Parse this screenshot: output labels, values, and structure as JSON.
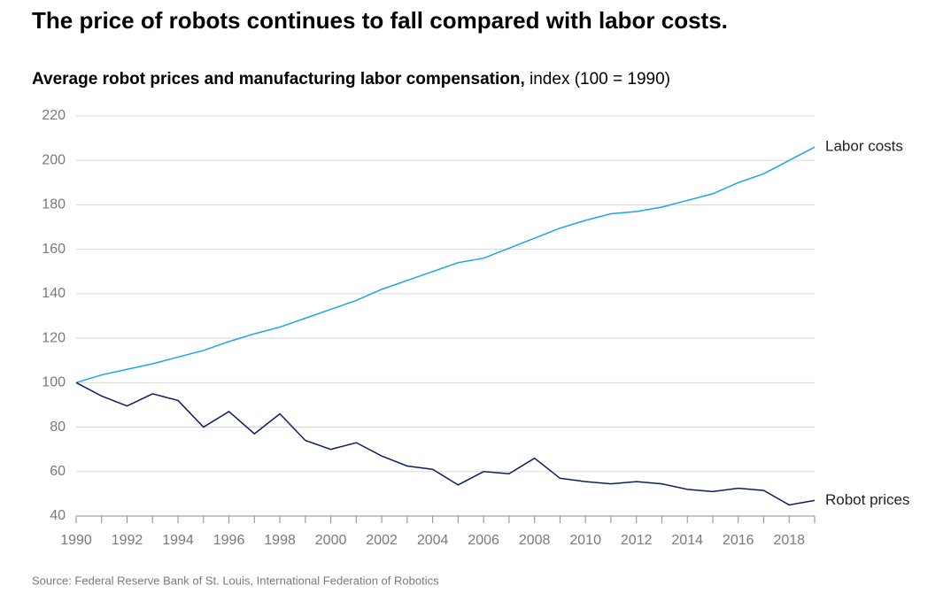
{
  "chart_data": {
    "type": "line",
    "title": "The price of robots continues to fall compared with labor costs.",
    "subtitle_bold": "Average robot prices and manufacturing labor compensation,",
    "subtitle": "index (100 = 1990)",
    "source": "Source: Federal Reserve Bank of St. Louis, International Federation of Robotics",
    "x": [
      1990,
      1991,
      1992,
      1993,
      1994,
      1995,
      1996,
      1997,
      1998,
      1999,
      2000,
      2001,
      2002,
      2003,
      2004,
      2005,
      2006,
      2007,
      2008,
      2009,
      2010,
      2011,
      2012,
      2013,
      2014,
      2015,
      2016,
      2017,
      2018,
      2019
    ],
    "series": [
      {
        "name": "Labor costs",
        "color": "#1ba6e3",
        "values": [
          100,
          103.5,
          106,
          108.5,
          111.5,
          114.5,
          118.5,
          122,
          125,
          129,
          133,
          137,
          142,
          146,
          150,
          154,
          156,
          160.5,
          165,
          169.5,
          173,
          176,
          177,
          179,
          182,
          185,
          190,
          194,
          200,
          206
        ]
      },
      {
        "name": "Robot prices",
        "color": "#0b1f5c",
        "values": [
          100,
          94,
          89.5,
          95,
          92,
          80,
          87,
          77,
          86,
          74,
          70,
          73,
          67,
          62.5,
          61,
          54,
          60,
          59,
          66,
          57,
          55.5,
          54.5,
          55.5,
          54.5,
          52,
          51,
          52.5,
          51.5,
          45,
          47
        ]
      }
    ],
    "xlim": [
      1990,
      2019
    ],
    "xticks": [
      1990,
      1992,
      1994,
      1996,
      1998,
      2000,
      2002,
      2004,
      2006,
      2008,
      2010,
      2012,
      2014,
      2016,
      2018
    ],
    "ylim": [
      40,
      220
    ],
    "yticks": [
      40,
      60,
      80,
      100,
      120,
      140,
      160,
      180,
      200,
      220
    ],
    "grid": true
  }
}
